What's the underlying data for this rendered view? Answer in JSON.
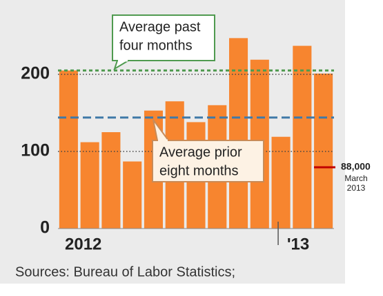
{
  "chart_data": {
    "type": "bar",
    "categories": [
      "2012",
      null,
      null,
      null,
      null,
      null,
      null,
      null,
      null,
      null,
      null,
      "'13",
      null
    ],
    "values": [
      205,
      112,
      125,
      87,
      153,
      165,
      138,
      160,
      247,
      219,
      119,
      237,
      201
    ],
    "color": "#f7852f",
    "ylim": [
      0,
      260
    ],
    "yticks": [
      0,
      100,
      200
    ],
    "grid": true,
    "reference_lines": [
      {
        "label": [
          "Average past",
          "four months"
        ],
        "value": 205,
        "color": "#4f9a4f"
      },
      {
        "label": [
          "Average prior",
          "eight months"
        ],
        "value": 144,
        "color": "#3f79a8"
      }
    ],
    "source": "Sources: Bureau of Labor Statistics;",
    "side_note": {
      "value_label": "88,000",
      "lines": [
        "March",
        "2013"
      ]
    }
  }
}
